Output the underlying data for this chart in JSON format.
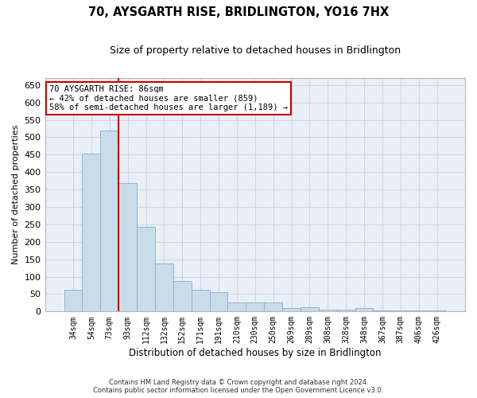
{
  "title": "70, AYSGARTH RISE, BRIDLINGTON, YO16 7HX",
  "subtitle": "Size of property relative to detached houses in Bridlington",
  "xlabel": "Distribution of detached houses by size in Bridlington",
  "ylabel": "Number of detached properties",
  "bar_color": "#c9dcea",
  "bar_edge_color": "#8aaec8",
  "categories": [
    "34sqm",
    "54sqm",
    "73sqm",
    "93sqm",
    "112sqm",
    "132sqm",
    "152sqm",
    "171sqm",
    "191sqm",
    "210sqm",
    "230sqm",
    "250sqm",
    "269sqm",
    "289sqm",
    "308sqm",
    "328sqm",
    "348sqm",
    "367sqm",
    "387sqm",
    "406sqm",
    "426sqm"
  ],
  "values": [
    62,
    452,
    519,
    368,
    242,
    138,
    88,
    62,
    55,
    25,
    25,
    25,
    10,
    12,
    6,
    6,
    10,
    3,
    3,
    4,
    3
  ],
  "ylim": [
    0,
    670
  ],
  "yticks": [
    0,
    50,
    100,
    150,
    200,
    250,
    300,
    350,
    400,
    450,
    500,
    550,
    600,
    650
  ],
  "property_line_x": 2.5,
  "annotation_title": "70 AYSGARTH RISE: 86sqm",
  "annotation_line1": "← 42% of detached houses are smaller (859)",
  "annotation_line2": "58% of semi-detached houses are larger (1,189) →",
  "annotation_box_color": "#ffffff",
  "annotation_box_edge": "#cc0000",
  "property_line_color": "#cc0000",
  "grid_color": "#ced8e8",
  "background_color": "#eaeff7",
  "footer_line1": "Contains HM Land Registry data © Crown copyright and database right 2024.",
  "footer_line2": "Contains public sector information licensed under the Open Government Licence v3.0."
}
